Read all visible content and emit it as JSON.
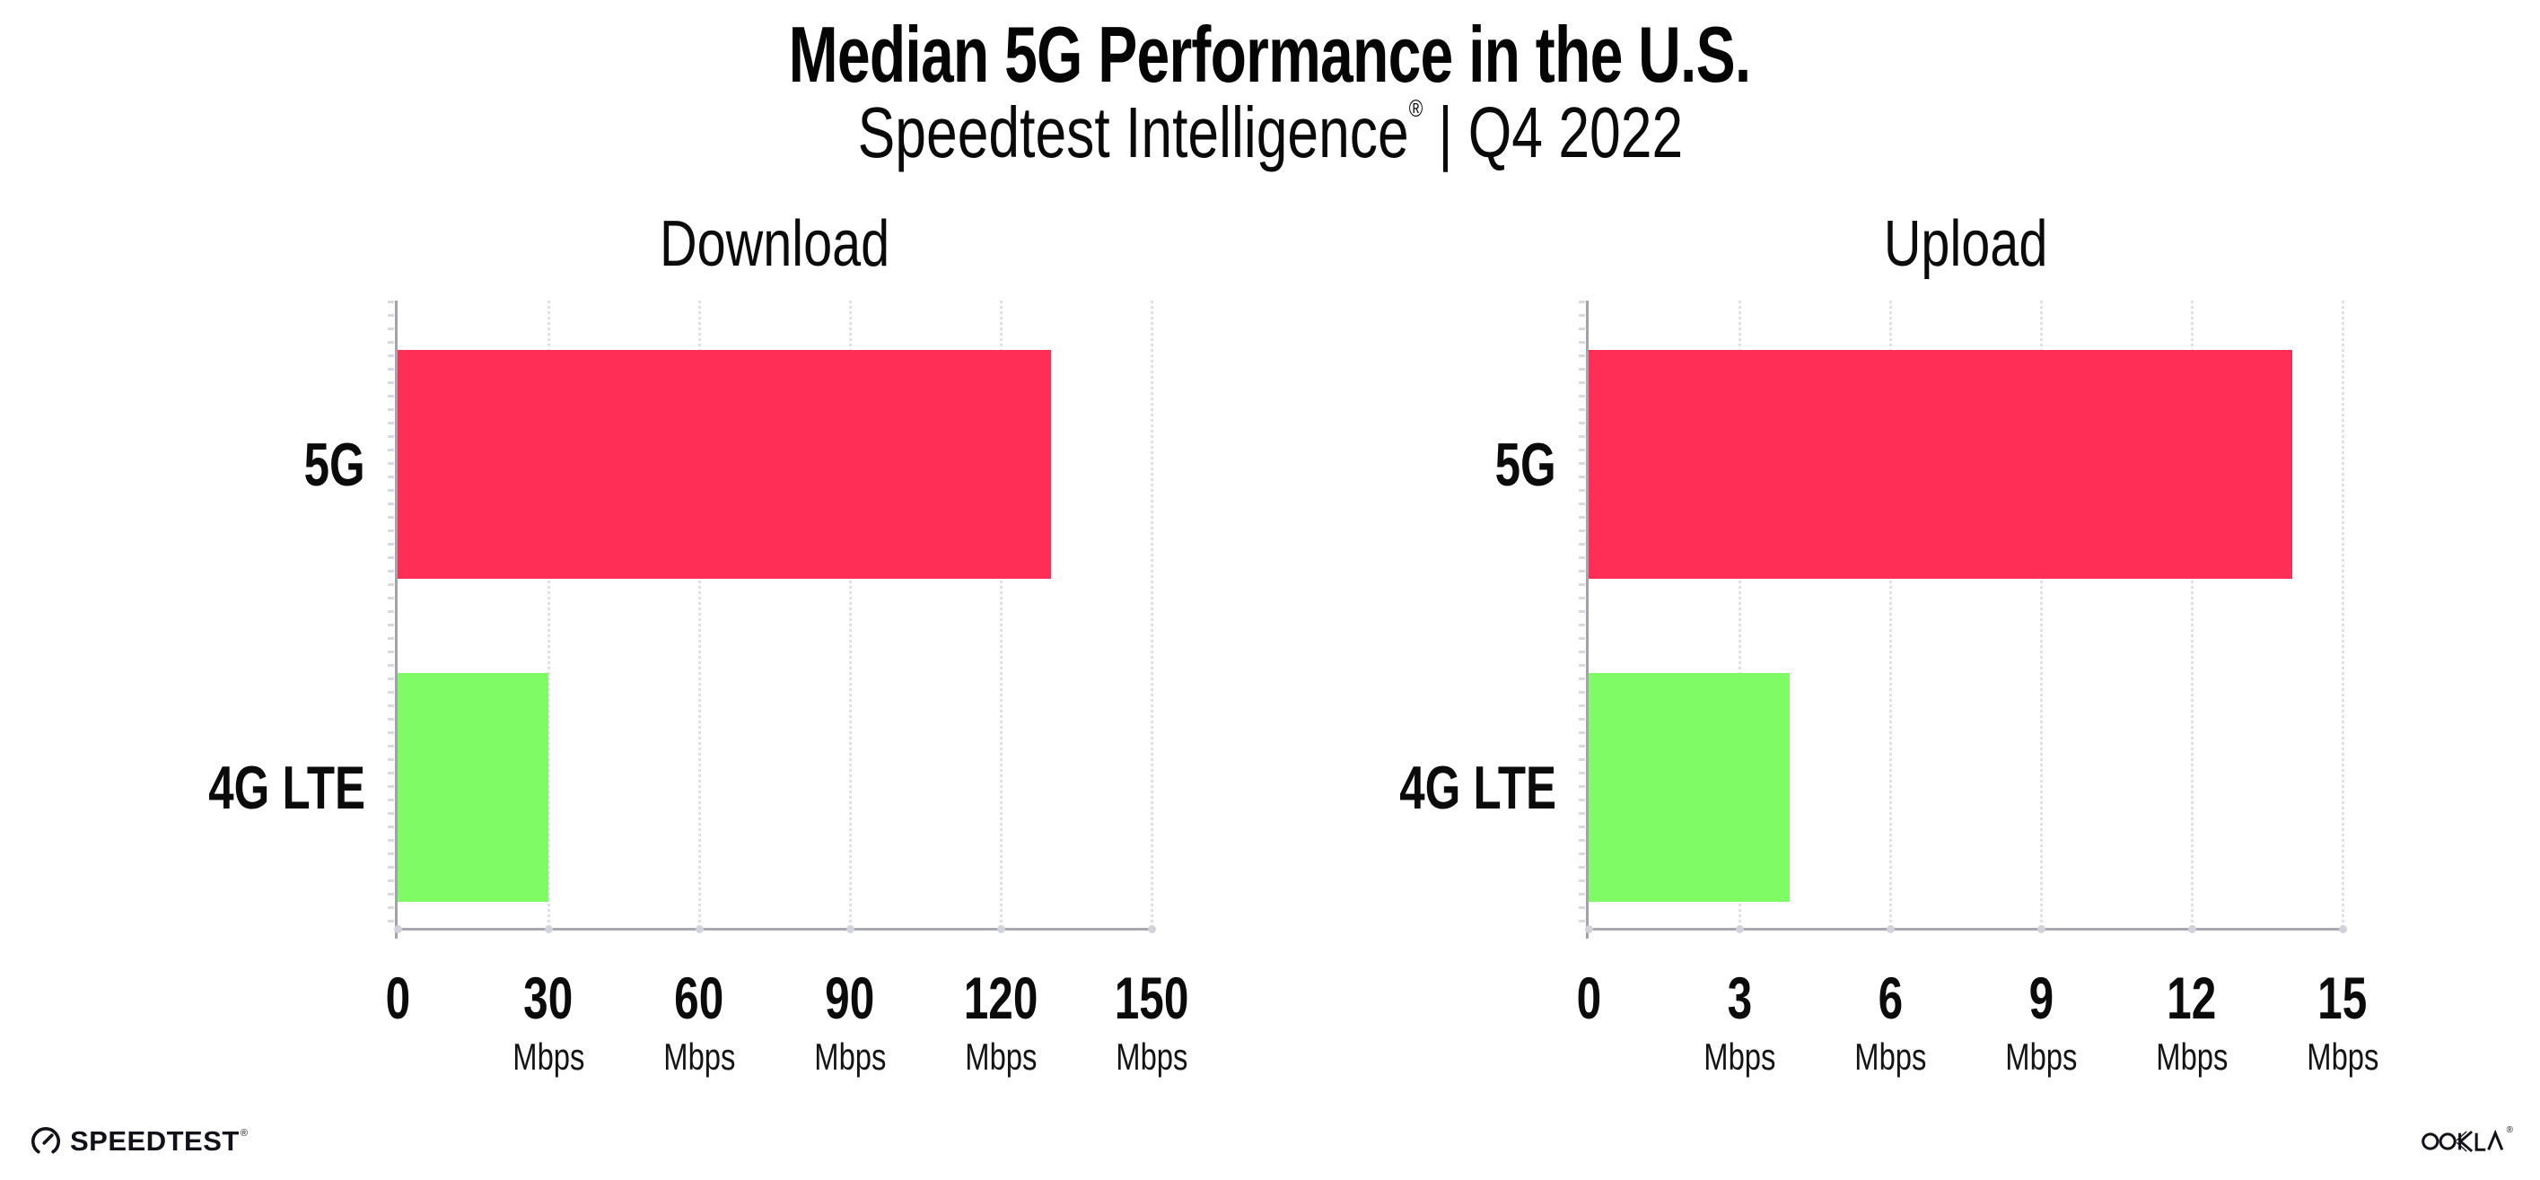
{
  "header": {
    "title": "Median 5G Performance in the U.S.",
    "subtitle_brand": "Speedtest Intelligence",
    "subtitle_registered": "®",
    "subtitle_separator": "|",
    "subtitle_period": "Q4 2022"
  },
  "chart_data": [
    {
      "type": "bar",
      "orientation": "horizontal",
      "title": "Download",
      "categories": [
        "5G",
        "4G LTE"
      ],
      "values": [
        130,
        30
      ],
      "unit": "Mbps",
      "xlim": [
        0,
        150
      ],
      "ticks": [
        {
          "value": 0,
          "label": "0",
          "unit": ""
        },
        {
          "value": 30,
          "label": "30",
          "unit": "Mbps"
        },
        {
          "value": 60,
          "label": "60",
          "unit": "Mbps"
        },
        {
          "value": 90,
          "label": "90",
          "unit": "Mbps"
        },
        {
          "value": 120,
          "label": "120",
          "unit": "Mbps"
        },
        {
          "value": 150,
          "label": "150",
          "unit": "Mbps"
        }
      ],
      "bar_colors": [
        "#ff2e56",
        "#7ffb66"
      ],
      "grid": "vertical-dotted",
      "legend": "none"
    },
    {
      "type": "bar",
      "orientation": "horizontal",
      "title": "Upload",
      "categories": [
        "5G",
        "4G LTE"
      ],
      "values": [
        14,
        4
      ],
      "unit": "Mbps",
      "xlim": [
        0,
        15
      ],
      "ticks": [
        {
          "value": 0,
          "label": "0",
          "unit": ""
        },
        {
          "value": 3,
          "label": "3",
          "unit": "Mbps"
        },
        {
          "value": 6,
          "label": "6",
          "unit": "Mbps"
        },
        {
          "value": 9,
          "label": "9",
          "unit": "Mbps"
        },
        {
          "value": 12,
          "label": "12",
          "unit": "Mbps"
        },
        {
          "value": 15,
          "label": "15",
          "unit": "Mbps"
        }
      ],
      "bar_colors": [
        "#ff2e56",
        "#7ffb66"
      ],
      "grid": "vertical-dotted",
      "legend": "none"
    }
  ],
  "colors": {
    "bar_5g": "#ff2e56",
    "bar_4g_lte": "#7ffb66",
    "axis": "#a2a2aa",
    "gridline": "#dfe0ea",
    "text": "#0b0b0c",
    "logo": "#12131a"
  },
  "footer": {
    "speedtest_wordmark": "SPEEDTEST",
    "speedtest_registered": "®",
    "ookla_wordmark": "OOKLA",
    "ookla_registered": "®"
  }
}
